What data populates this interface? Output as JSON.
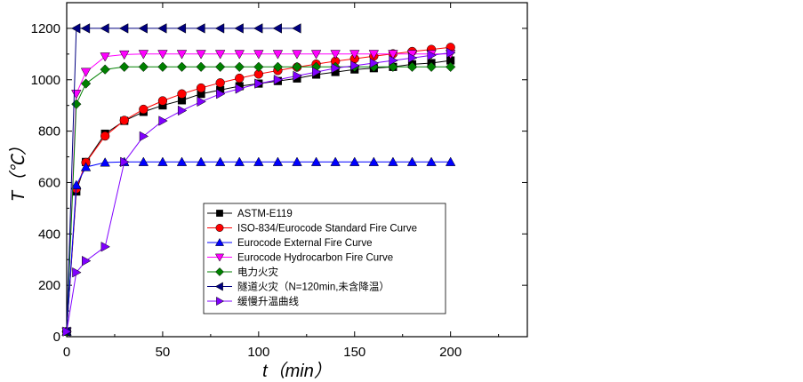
{
  "chart_data": {
    "type": "line",
    "xlabel": "t（min）",
    "ylabel": "T（℃）",
    "xlim": [
      0,
      240
    ],
    "ylim": [
      0,
      1300
    ],
    "xticks": [
      0,
      50,
      100,
      150,
      200
    ],
    "yticks": [
      0,
      200,
      400,
      600,
      800,
      1000,
      1200
    ],
    "grid": false,
    "legend_position": "center-bottom",
    "series": [
      {
        "name": "ASTM-E119",
        "marker": "square",
        "color": "#000000",
        "x": [
          0,
          5,
          10,
          20,
          30,
          40,
          50,
          60,
          70,
          80,
          90,
          100,
          110,
          120,
          130,
          140,
          150,
          160,
          170,
          180,
          190,
          200
        ],
        "y": [
          20,
          565,
          680,
          790,
          840,
          875,
          900,
          920,
          945,
          960,
          975,
          985,
          995,
          1005,
          1020,
          1030,
          1040,
          1045,
          1050,
          1060,
          1065,
          1075
        ]
      },
      {
        "name": "ISO-834/Eurocode Standard Fire Curve",
        "marker": "circle",
        "color": "#ff0000",
        "x": [
          0,
          5,
          10,
          20,
          30,
          40,
          50,
          60,
          70,
          80,
          90,
          100,
          110,
          120,
          130,
          140,
          150,
          160,
          170,
          180,
          190,
          200
        ],
        "y": [
          20,
          576,
          678,
          781,
          842,
          885,
          918,
          945,
          968,
          988,
          1006,
          1022,
          1036,
          1049,
          1061,
          1072,
          1082,
          1092,
          1101,
          1110,
          1118,
          1126
        ]
      },
      {
        "name": "Eurocode External Fire Curve",
        "marker": "triangle-up",
        "color": "#0000ff",
        "x": [
          0,
          5,
          10,
          20,
          30,
          40,
          50,
          60,
          70,
          80,
          90,
          100,
          110,
          120,
          130,
          140,
          150,
          160,
          170,
          180,
          190,
          200
        ],
        "y": [
          20,
          590,
          660,
          678,
          680,
          680,
          680,
          680,
          680,
          680,
          680,
          680,
          680,
          680,
          680,
          680,
          680,
          680,
          680,
          680,
          680,
          680
        ]
      },
      {
        "name": "Eurocode Hydrocarbon Fire Curve",
        "marker": "triangle-down",
        "color": "#ff00ff",
        "x": [
          0,
          5,
          10,
          20,
          30,
          40,
          50,
          60,
          70,
          80,
          90,
          100,
          110,
          120,
          130,
          140,
          150,
          160,
          170,
          180,
          190,
          200
        ],
        "y": [
          20,
          945,
          1030,
          1090,
          1098,
          1100,
          1100,
          1100,
          1100,
          1100,
          1100,
          1100,
          1100,
          1100,
          1100,
          1100,
          1100,
          1100,
          1100,
          1100,
          1100,
          1100
        ]
      },
      {
        "name": "电力火灾",
        "marker": "diamond",
        "color": "#008000",
        "x": [
          0,
          5,
          10,
          20,
          30,
          40,
          50,
          60,
          70,
          80,
          90,
          100,
          110,
          120,
          130,
          140,
          150,
          160,
          170,
          180,
          190,
          200
        ],
        "y": [
          20,
          905,
          985,
          1040,
          1050,
          1050,
          1050,
          1050,
          1050,
          1050,
          1050,
          1050,
          1050,
          1050,
          1050,
          1050,
          1050,
          1050,
          1050,
          1050,
          1050,
          1050
        ]
      },
      {
        "name": "隧道火灾（N=120min,未含降温）",
        "marker": "triangle-left",
        "color": "#000080",
        "x": [
          0,
          5,
          10,
          20,
          30,
          40,
          50,
          60,
          70,
          80,
          90,
          100,
          110,
          120
        ],
        "y": [
          20,
          1200,
          1200,
          1200,
          1200,
          1200,
          1200,
          1200,
          1200,
          1200,
          1200,
          1200,
          1200,
          1200
        ]
      },
      {
        "name": "缓慢升温曲线",
        "marker": "triangle-right",
        "color": "#8000ff",
        "x": [
          0,
          5,
          10,
          20,
          30,
          40,
          50,
          60,
          70,
          80,
          90,
          100,
          110,
          120,
          130,
          140,
          150,
          160,
          170,
          180,
          190,
          200
        ],
        "y": [
          20,
          250,
          295,
          350,
          680,
          780,
          840,
          880,
          915,
          945,
          965,
          985,
          1000,
          1015,
          1030,
          1045,
          1055,
          1065,
          1075,
          1085,
          1095,
          1105
        ]
      }
    ]
  }
}
